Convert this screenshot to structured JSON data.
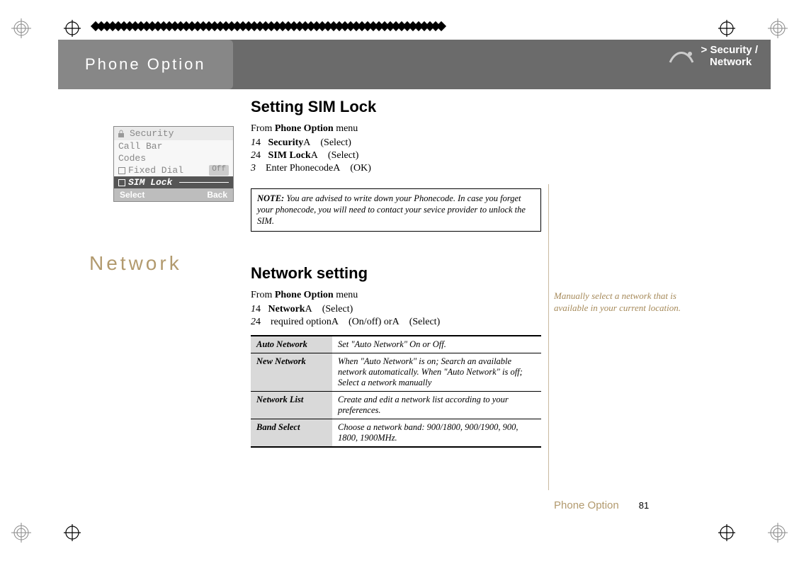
{
  "header": {
    "tab": "Phone Option",
    "breadcrumb_prefix": "> ",
    "breadcrumb1": "Security",
    "breadcrumb_sep": " / ",
    "breadcrumb2": "Network"
  },
  "phone_screen": {
    "title": "Security",
    "rows": [
      "Call Bar",
      "Codes"
    ],
    "fixed_label": "Fixed Dial",
    "fixed_state": "Off",
    "selected": "SIM Lock",
    "soft_left": "Select",
    "soft_right": "Back"
  },
  "sim": {
    "heading": "Setting SIM Lock",
    "from_line_prefix": "From ",
    "from_line_bold": "Phone Option",
    "from_line_suffix": " menu",
    "steps": [
      {
        "n": "1",
        "arrow": "4",
        "bold": "Security",
        "tail": "A",
        "act": "(Select)"
      },
      {
        "n": "2",
        "arrow": "4",
        "bold": "SIM Lock",
        "tail": "A",
        "act": "(Select)"
      },
      {
        "n": "3",
        "arrow": "",
        "bold": "",
        "tail": " Enter PhonecodeA",
        "act": "(OK)"
      }
    ],
    "note_label": "NOTE:",
    "note": " You are advised to write down your Phonecode. In case you forget your phonecode, you will need to contact your sevice provider to unlock the SIM."
  },
  "network_section_label": "Network",
  "net": {
    "heading": "Network setting",
    "from_line_prefix": "From ",
    "from_line_bold": "Phone Option",
    "from_line_suffix": " menu",
    "steps": [
      {
        "n": "1",
        "arrow": "4",
        "bold": "Network",
        "tail": "A",
        "act": "(Select)"
      },
      {
        "n": "2",
        "arrow": "4",
        "bold": "",
        "tail": " required optionA",
        "act": "(On/off) orA",
        "act2": "(Select)"
      }
    ]
  },
  "options_table": {
    "rows": [
      {
        "k": "Auto Network",
        "v": "Set \"Auto Network\" On or Off."
      },
      {
        "k": "New Network",
        "v": "When \"Auto Network\" is on; Search an available network automatically. When \"Auto Network\" is off; Select a network manually"
      },
      {
        "k": "Network List",
        "v": "Create and edit a network list according to your preferences."
      },
      {
        "k": "Band Select",
        "v": "Choose a network band: 900/1800, 900/1900, 900, 1800, 1900MHz."
      }
    ]
  },
  "side_note": "Manually select a network that is available in your current location.",
  "footer": {
    "label": "Phone Option",
    "page": "81"
  },
  "colors": {
    "accent": "#b29a6e",
    "header_bg": "#6b6b6b",
    "tab_bg": "#878787",
    "table_key_bg": "#d9d9d9"
  }
}
